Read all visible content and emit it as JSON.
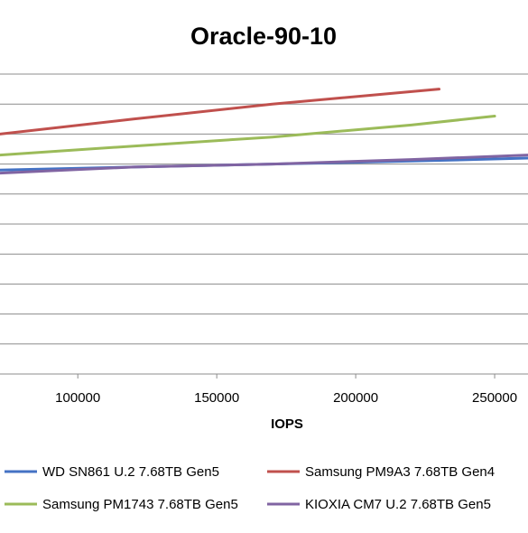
{
  "chart_data": {
    "type": "line",
    "title": "Oracle-90-10",
    "xlabel": "IOPS",
    "ylabel": "",
    "x_ticks": [
      100000,
      150000,
      200000,
      250000
    ],
    "x_tick_labels": [
      "100000",
      "150000",
      "200000",
      "250000"
    ],
    "xlim": [
      72000,
      262000
    ],
    "ylim": [
      0,
      1
    ],
    "grid": true,
    "legend_position": "bottom",
    "series": [
      {
        "name": "WD SN861 U.2 7.68TB Gen5",
        "color": "#4472C4",
        "x": [
          72000,
          120000,
          170000,
          220000,
          262000
        ],
        "y": [
          0.68,
          0.69,
          0.7,
          0.71,
          0.72
        ]
      },
      {
        "name": "Samsung PM9A3 7.68TB Gen4",
        "color": "#C0504D",
        "x": [
          72000,
          120000,
          170000,
          230000
        ],
        "y": [
          0.8,
          0.85,
          0.9,
          0.95
        ]
      },
      {
        "name": "Samsung PM1743 7.68TB Gen5",
        "color": "#9BBB59",
        "x": [
          72000,
          120000,
          170000,
          220000,
          250000
        ],
        "y": [
          0.73,
          0.76,
          0.79,
          0.83,
          0.86
        ]
      },
      {
        "name": "KIOXIA CM7 U.2 7.68TB Gen5",
        "color": "#8064A2",
        "x": [
          72000,
          120000,
          170000,
          220000,
          262000
        ],
        "y": [
          0.67,
          0.69,
          0.7,
          0.715,
          0.73
        ]
      }
    ]
  }
}
